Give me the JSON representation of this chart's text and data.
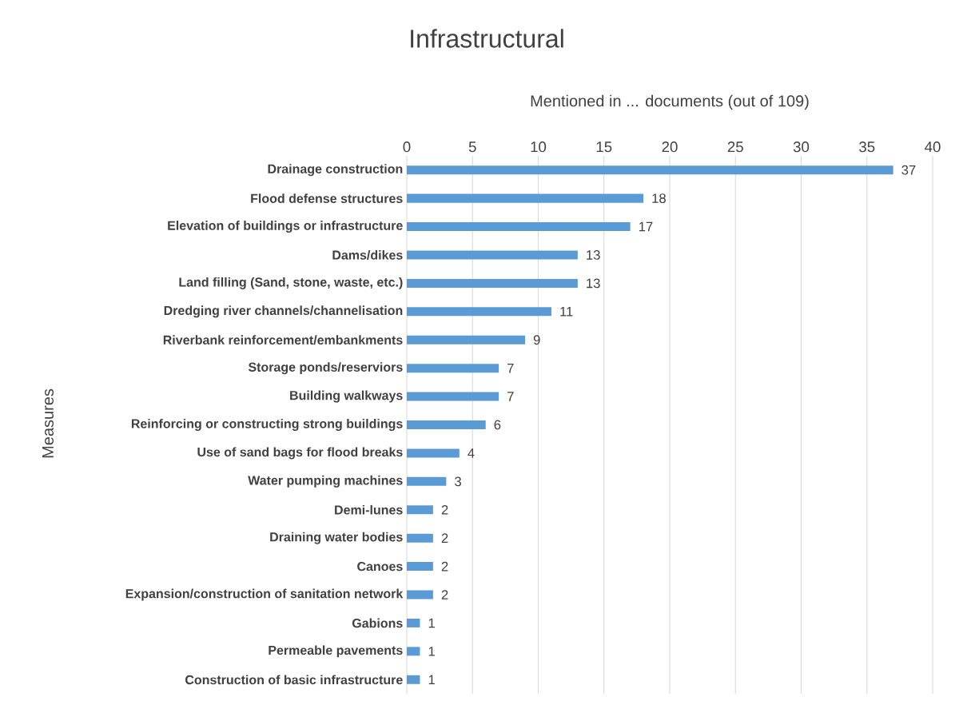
{
  "chart_data": {
    "type": "bar",
    "orientation": "horizontal",
    "title": "Infrastructural",
    "xlabel": "Mentioned in ... documents (out of 109)",
    "ylabel": "Measures",
    "categories": [
      "Drainage construction",
      "Flood defense structures",
      "Elevation of buildings or infrastructure",
      "Dams/dikes",
      "Land filling (Sand, stone, waste, etc.)",
      "Dredging river channels/channelisation",
      "Riverbank reinforcement/embankments",
      "Storage ponds/reserviors",
      "Building walkways",
      "Reinforcing or constructing strong buildings",
      "Use of sand bags for flood breaks",
      "Water pumping machines",
      "Demi-lunes",
      "Draining water bodies",
      "Canoes",
      "Expansion/construction of sanitation network",
      "Gabions",
      "Permeable pavements",
      "Construction of basic infrastructure"
    ],
    "values": [
      37,
      18,
      17,
      13,
      13,
      11,
      9,
      7,
      7,
      6,
      4,
      3,
      2,
      2,
      2,
      2,
      1,
      1,
      1
    ],
    "color": "#5b9bd5",
    "xlim": [
      0,
      40
    ],
    "xticks": [
      0,
      5,
      10,
      15,
      20,
      25,
      30,
      35,
      40
    ],
    "grid": "x",
    "data_labels": true
  }
}
